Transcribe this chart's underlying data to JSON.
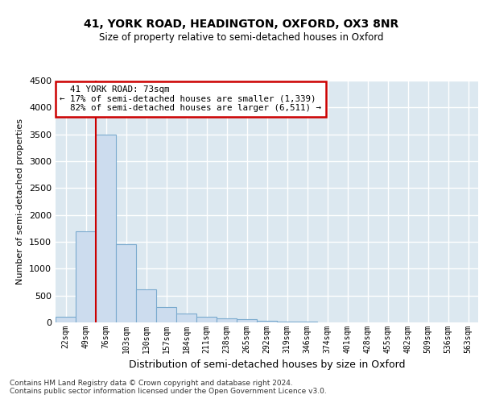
{
  "title1": "41, YORK ROAD, HEADINGTON, OXFORD, OX3 8NR",
  "title2": "Size of property relative to semi-detached houses in Oxford",
  "xlabel": "Distribution of semi-detached houses by size in Oxford",
  "ylabel": "Number of semi-detached properties",
  "footnote": "Contains HM Land Registry data © Crown copyright and database right 2024.\nContains public sector information licensed under the Open Government Licence v3.0.",
  "bar_labels": [
    "22sqm",
    "49sqm",
    "76sqm",
    "103sqm",
    "130sqm",
    "157sqm",
    "184sqm",
    "211sqm",
    "238sqm",
    "265sqm",
    "292sqm",
    "319sqm",
    "346sqm",
    "374sqm",
    "401sqm",
    "428sqm",
    "455sqm",
    "482sqm",
    "509sqm",
    "536sqm",
    "563sqm"
  ],
  "bar_values": [
    110,
    1700,
    3500,
    1450,
    620,
    290,
    170,
    100,
    80,
    55,
    30,
    15,
    8,
    4,
    2,
    1,
    1,
    0,
    0,
    0,
    0
  ],
  "bar_color": "#ccdcee",
  "bar_edge_color": "#7aaace",
  "highlight_label": "41 YORK ROAD: 73sqm",
  "pct_smaller": "17%",
  "pct_smaller_n": "1,339",
  "pct_larger": "82%",
  "pct_larger_n": "6,511",
  "annotation_box_color": "#ffffff",
  "annotation_box_edge": "#cc0000",
  "vline_color": "#cc0000",
  "vline_x": 1.5,
  "ylim": [
    0,
    4500
  ],
  "yticks": [
    0,
    500,
    1000,
    1500,
    2000,
    2500,
    3000,
    3500,
    4000,
    4500
  ],
  "plot_bg_color": "#dce8f0",
  "grid_color": "#ffffff"
}
